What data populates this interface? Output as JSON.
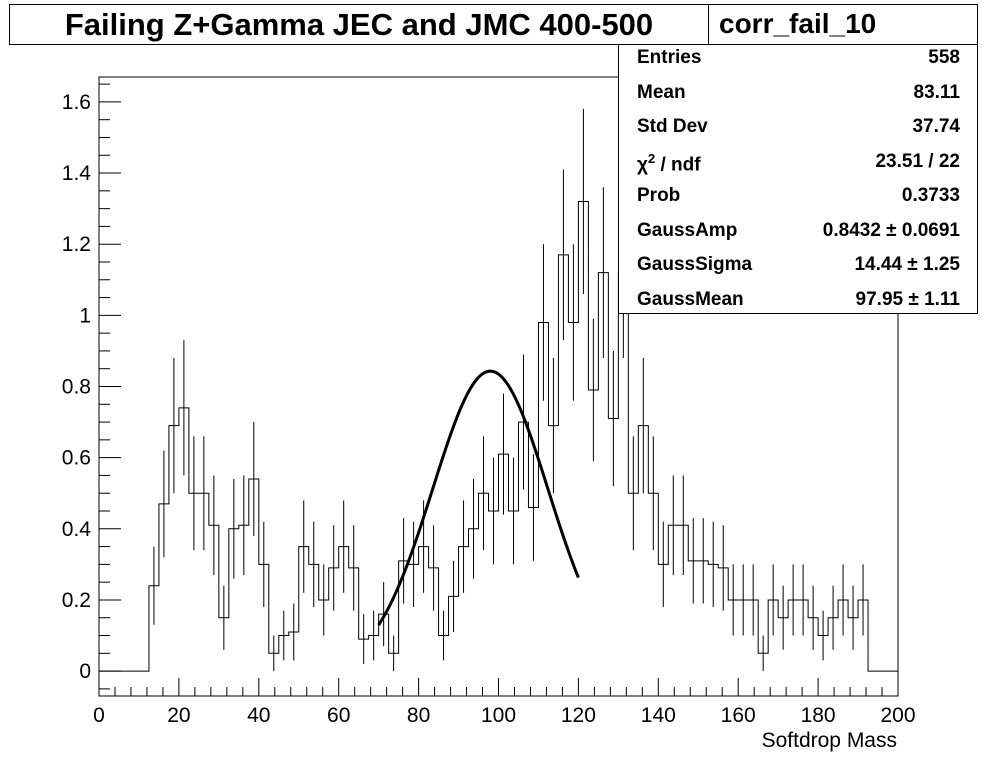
{
  "title": "Failing Z+Gamma JEC and JMC 400-500",
  "stats": {
    "name": "corr_fail_10",
    "rows": [
      {
        "label": "Entries",
        "value": "558"
      },
      {
        "label": "Mean",
        "value": "83.11"
      },
      {
        "label": "Std Dev",
        "value": "37.74"
      },
      {
        "label": "χ2 / ndf",
        "value": "23.51 / 22"
      },
      {
        "label": "Prob",
        "value": "0.3733"
      },
      {
        "label": "GaussAmp",
        "value": "0.8432 ± 0.0691"
      },
      {
        "label": "GaussSigma",
        "value": "14.44 ± 1.25"
      },
      {
        "label": "GaussMean",
        "value": "97.95 ± 1.11"
      }
    ]
  },
  "chart_data": {
    "type": "histogram",
    "xlabel": "Softdrop Mass",
    "ylabel": "",
    "xlim": [
      0,
      200
    ],
    "ylim": [
      -0.07,
      1.67
    ],
    "x_ticks": [
      0,
      20,
      40,
      60,
      80,
      100,
      120,
      140,
      160,
      180,
      200
    ],
    "y_ticks": [
      0,
      0.2,
      0.4,
      0.6,
      0.8,
      1,
      1.2,
      1.4,
      1.6
    ],
    "bin_width": 2.5,
    "values": [
      0,
      0,
      0,
      0,
      0,
      0.24,
      0.47,
      0.69,
      0.74,
      0.5,
      0.5,
      0.41,
      0.15,
      0.4,
      0.41,
      0.54,
      0.3,
      0.05,
      0.1,
      0.11,
      0.35,
      0.3,
      0.2,
      0.29,
      0.35,
      0.29,
      0.09,
      0.1,
      0.16,
      0.05,
      0.31,
      0.3,
      0.35,
      0.29,
      0.1,
      0.21,
      0.35,
      0.4,
      0.5,
      0.45,
      0.61,
      0.45,
      0.7,
      0.46,
      0.98,
      0.69,
      1.17,
      0.98,
      1.32,
      0.79,
      1.12,
      0.71,
      1.12,
      0.5,
      0.69,
      0.5,
      0.3,
      0.41,
      0.41,
      0.31,
      0.31,
      0.3,
      0.29,
      0.2,
      0.2,
      0.2,
      0.05,
      0.2,
      0.15,
      0.2,
      0.2,
      0.15,
      0.1,
      0.15,
      0.2,
      0.15,
      0.2,
      0,
      0,
      0,
      0,
      0.05,
      0.05,
      0,
      0,
      0,
      0.05,
      0,
      0.05,
      0,
      0,
      0,
      0,
      0,
      0,
      0,
      0,
      0,
      0,
      0,
      0
    ],
    "errors": [
      0,
      0,
      0,
      0,
      0,
      0.11,
      0.15,
      0.19,
      0.19,
      0.16,
      0.16,
      0.14,
      0.09,
      0.14,
      0.14,
      0.16,
      0.12,
      0.05,
      0.07,
      0.08,
      0.13,
      0.12,
      0.1,
      0.12,
      0.13,
      0.12,
      0.07,
      0.07,
      0.09,
      0.05,
      0.12,
      0.12,
      0.13,
      0.12,
      0.07,
      0.1,
      0.13,
      0.14,
      0.16,
      0.15,
      0.17,
      0.15,
      0.19,
      0.15,
      0.22,
      0.19,
      0.24,
      0.22,
      0.26,
      0.2,
      0.24,
      0.19,
      0.24,
      0.16,
      0.19,
      0.16,
      0.12,
      0.14,
      0.14,
      0.12,
      0.12,
      0.12,
      0.12,
      0.1,
      0.1,
      0.1,
      0.05,
      0.1,
      0.09,
      0.1,
      0.1,
      0.09,
      0.07,
      0.09,
      0.1,
      0.09,
      0.1,
      0,
      0,
      0,
      0,
      0.05,
      0.05,
      0,
      0,
      0,
      0.05,
      0,
      0.05,
      0,
      0,
      0,
      0,
      0,
      0,
      0,
      0,
      0,
      0,
      0,
      0
    ],
    "fit": {
      "function": "gaus",
      "amp": 0.8432,
      "mean": 97.95,
      "sigma": 14.44,
      "range": [
        70,
        120
      ]
    }
  }
}
